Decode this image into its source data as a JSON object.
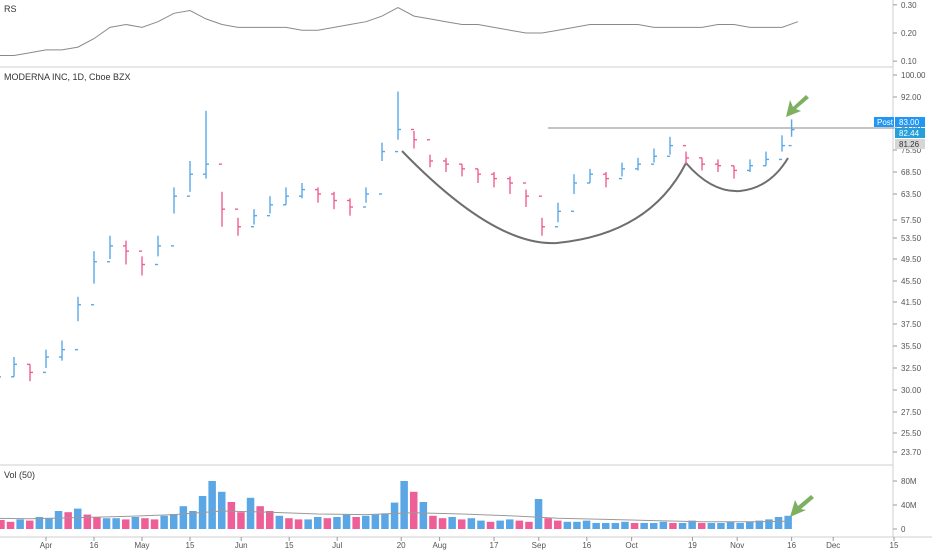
{
  "rs_pane": {
    "title": "RS",
    "ticks": [
      "0.30",
      "0.20",
      "0.10"
    ],
    "tick_values": [
      0.3,
      0.2,
      0.1
    ],
    "ylim": [
      0.09,
      0.31
    ]
  },
  "price_pane": {
    "title": "MODERNA INC, 1D, Cboe BZX",
    "ticks": [
      "100.00",
      "92.00",
      "83.00",
      "75.50",
      "68.50",
      "63.50",
      "57.50",
      "53.50",
      "49.50",
      "45.50",
      "41.50",
      "37.50",
      "35.50",
      "32.50",
      "30.00",
      "27.50",
      "25.50",
      "23.70"
    ],
    "post_label": "Post",
    "tags": [
      "83.00",
      "82.44",
      "81.26"
    ],
    "tag_colors": [
      "#2196f3",
      "#26a0da",
      "#d6d6d6"
    ]
  },
  "volume_pane": {
    "title": "Vol (50)",
    "ticks": [
      "80M",
      "40M",
      "0"
    ],
    "tick_values": [
      80,
      40,
      0
    ],
    "ylim": [
      0,
      100
    ]
  },
  "x_axis": {
    "labels": [
      "Apr",
      "16",
      "May",
      "15",
      "Jun",
      "15",
      "Jul",
      "20",
      "Aug",
      "17",
      "Sep",
      "16",
      "Oct",
      "19",
      "Nov",
      "16",
      "Dec",
      "15"
    ],
    "label_days": [
      0,
      15,
      30,
      45,
      61,
      76,
      91,
      111,
      123,
      140,
      154,
      169,
      183,
      202,
      216,
      233,
      246,
      265
    ]
  },
  "colors": {
    "up": "#5ba7e6",
    "down": "#ef5f97",
    "rs_line": "#8a8a8a",
    "ma_line": "#9a9a9a",
    "pattern": "#6e6e6e",
    "resistance": "#8a8a8a",
    "arrow": "#7db060",
    "grid": "#eeeeee"
  },
  "chart_data": [
    {
      "type": "line",
      "name": "RS",
      "x": [
        -35,
        -30,
        -25,
        -20,
        -15,
        -10,
        -5,
        0,
        5,
        10,
        15,
        20,
        25,
        30,
        35,
        40,
        45,
        50,
        55,
        60,
        65,
        70,
        75,
        80,
        85,
        90,
        95,
        100,
        105,
        110,
        115,
        120,
        125,
        130,
        135,
        140,
        145,
        150,
        155,
        160,
        165,
        170,
        175,
        180,
        185,
        190,
        195,
        200,
        205,
        210,
        215,
        220,
        225,
        230,
        235
      ],
      "values": [
        0.13,
        0.12,
        0.11,
        0.11,
        0.12,
        0.12,
        0.13,
        0.14,
        0.14,
        0.15,
        0.18,
        0.22,
        0.23,
        0.22,
        0.24,
        0.27,
        0.28,
        0.25,
        0.23,
        0.22,
        0.22,
        0.22,
        0.22,
        0.21,
        0.21,
        0.22,
        0.23,
        0.24,
        0.26,
        0.29,
        0.26,
        0.25,
        0.24,
        0.23,
        0.23,
        0.22,
        0.21,
        0.2,
        0.2,
        0.21,
        0.22,
        0.23,
        0.23,
        0.23,
        0.23,
        0.22,
        0.22,
        0.22,
        0.22,
        0.23,
        0.23,
        0.22,
        0.22,
        0.22,
        0.24
      ]
    },
    {
      "type": "ohlc",
      "name": "MODERNA INC",
      "x": [
        -35,
        -30,
        -25,
        -20,
        -15,
        -10,
        -5,
        0,
        5,
        10,
        15,
        20,
        25,
        30,
        35,
        40,
        45,
        50,
        55,
        60,
        65,
        70,
        75,
        80,
        85,
        90,
        95,
        100,
        105,
        110,
        115,
        120,
        125,
        130,
        135,
        140,
        145,
        150,
        155,
        160,
        165,
        170,
        175,
        180,
        185,
        190,
        195,
        200,
        205,
        210,
        215,
        220,
        225,
        230,
        233
      ],
      "close": [
        28.5,
        30.0,
        29.5,
        30.5,
        31.5,
        33.0,
        32.0,
        34.0,
        35.0,
        41.0,
        49.0,
        52.0,
        51.0,
        48.5,
        52.0,
        63.0,
        68.0,
        71.0,
        60.0,
        56.0,
        58.5,
        61.0,
        63.0,
        64.5,
        63.5,
        62.0,
        60.5,
        63.5,
        75.0,
        82.5,
        79.0,
        72.0,
        71.0,
        69.5,
        68.0,
        67.0,
        66.0,
        63.0,
        56.0,
        59.5,
        66.0,
        68.0,
        67.0,
        69.5,
        71.0,
        73.5,
        77.0,
        73.0,
        71.0,
        70.5,
        69.0,
        70.5,
        72.5,
        77.0,
        82.44
      ],
      "high": [
        29.5,
        31.0,
        30.5,
        31.5,
        32.5,
        34.0,
        33.0,
        35.0,
        36.0,
        42.5,
        51.0,
        54.0,
        53.0,
        50.0,
        54.0,
        65.0,
        72.0,
        88.0,
        64.0,
        58.0,
        60.0,
        63.0,
        65.0,
        66.0,
        65.0,
        64.0,
        62.5,
        65.0,
        78.0,
        94.0,
        82.0,
        74.0,
        73.0,
        71.0,
        69.5,
        68.5,
        67.5,
        64.5,
        58.0,
        61.5,
        68.0,
        69.5,
        68.5,
        71.5,
        73.0,
        76.0,
        80.0,
        75.0,
        73.0,
        72.5,
        70.5,
        72.5,
        75.0,
        80.5,
        85.5
      ],
      "low": [
        27.0,
        28.5,
        28.0,
        29.0,
        30.0,
        31.5,
        31.0,
        32.5,
        33.5,
        38.0,
        45.0,
        49.5,
        48.5,
        46.5,
        50.0,
        59.0,
        64.0,
        67.0,
        56.0,
        54.0,
        56.5,
        59.0,
        61.0,
        62.5,
        61.5,
        60.0,
        58.5,
        61.5,
        72.0,
        79.0,
        76.0,
        70.0,
        68.5,
        67.5,
        66.0,
        65.0,
        63.5,
        60.5,
        54.0,
        57.0,
        63.5,
        66.0,
        65.0,
        67.5,
        69.0,
        71.5,
        74.0,
        71.0,
        69.0,
        68.5,
        67.0,
        68.5,
        70.5,
        75.0,
        80.0
      ]
    },
    {
      "type": "bar",
      "name": "Vol",
      "x": [
        -35,
        -32,
        -29,
        -26,
        -23,
        -20,
        -17,
        -14,
        -11,
        -8,
        -5,
        -2,
        1,
        4,
        7,
        10,
        13,
        16,
        19,
        22,
        25,
        28,
        31,
        34,
        37,
        40,
        43,
        46,
        49,
        52,
        55,
        58,
        61,
        64,
        67,
        70,
        73,
        76,
        79,
        82,
        85,
        88,
        91,
        94,
        97,
        100,
        103,
        106,
        109,
        112,
        115,
        118,
        121,
        124,
        127,
        130,
        133,
        136,
        139,
        142,
        145,
        148,
        151,
        154,
        157,
        160,
        163,
        166,
        169,
        172,
        175,
        178,
        181,
        184,
        187,
        190,
        193,
        196,
        199,
        202,
        205,
        208,
        211,
        214,
        217,
        220,
        223,
        226,
        229,
        232
      ],
      "values": [
        32,
        22,
        18,
        16,
        15,
        14,
        18,
        15,
        12,
        16,
        14,
        20,
        18,
        30,
        28,
        34,
        24,
        20,
        18,
        18,
        16,
        20,
        18,
        16,
        22,
        25,
        38,
        30,
        55,
        80,
        62,
        45,
        28,
        52,
        38,
        30,
        22,
        18,
        16,
        16,
        20,
        18,
        20,
        24,
        20,
        22,
        24,
        26,
        44,
        80,
        62,
        45,
        22,
        18,
        20,
        16,
        18,
        14,
        12,
        14,
        16,
        14,
        12,
        50,
        18,
        14,
        12,
        12,
        14,
        10,
        10,
        10,
        12,
        10,
        10,
        10,
        12,
        10,
        10,
        14,
        10,
        10,
        10,
        12,
        10,
        12,
        14,
        16,
        20,
        22
      ]
    },
    {
      "type": "line",
      "name": "Vol MA",
      "x": [
        -35,
        -20,
        -5,
        10,
        25,
        40,
        55,
        70,
        85,
        100,
        115,
        130,
        145,
        160,
        175,
        190,
        205,
        220,
        232
      ],
      "values": [
        18,
        18,
        17,
        19,
        21,
        24,
        30,
        28,
        25,
        24,
        27,
        25,
        22,
        18,
        16,
        14,
        12,
        12,
        13
      ]
    }
  ]
}
